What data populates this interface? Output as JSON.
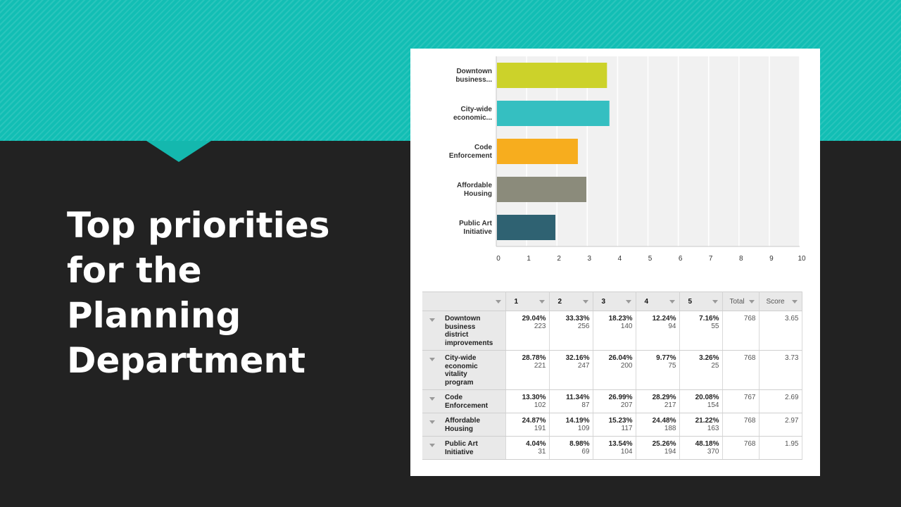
{
  "slide": {
    "title_lines": [
      "Top priorities",
      "for the",
      "Planning",
      "Department"
    ]
  },
  "colors": {
    "band": "#12beb4",
    "background": "#222222",
    "plot_background": "#f1f1f1",
    "bars": [
      "#ccd22a",
      "#35bfc1",
      "#f7ad1e",
      "#8b8b7b",
      "#2f6272"
    ]
  },
  "chart_data": {
    "type": "bar",
    "orientation": "horizontal",
    "categories": [
      "Downtown business...",
      "City-wide economic...",
      "Code Enforcement",
      "Affordable Housing",
      "Public Art Initiative"
    ],
    "category_lines": [
      [
        "Downtown",
        "business..."
      ],
      [
        "City-wide",
        "economic..."
      ],
      [
        "Code",
        "Enforcement"
      ],
      [
        "Affordable",
        "Housing"
      ],
      [
        "Public Art",
        "Initiative"
      ]
    ],
    "values": [
      3.65,
      3.73,
      2.69,
      2.97,
      1.95
    ],
    "xlim": [
      0,
      10
    ],
    "xticks": [
      "0",
      "1",
      "2",
      "3",
      "4",
      "5",
      "6",
      "7",
      "8",
      "9",
      "10"
    ],
    "grid": true,
    "title": "",
    "xlabel": "",
    "ylabel": ""
  },
  "table": {
    "columns": [
      "1",
      "2",
      "3",
      "4",
      "5",
      "Total",
      "Score"
    ],
    "rows": [
      {
        "label_lines": [
          "Downtown",
          "business",
          "district",
          "improvements"
        ],
        "pcts": [
          "29.04%",
          "33.33%",
          "18.23%",
          "12.24%",
          "7.16%"
        ],
        "counts": [
          "223",
          "256",
          "140",
          "94",
          "55"
        ],
        "total": "768",
        "score": "3.65"
      },
      {
        "label_lines": [
          "City-wide",
          "economic",
          "vitality",
          "program"
        ],
        "pcts": [
          "28.78%",
          "32.16%",
          "26.04%",
          "9.77%",
          "3.26%"
        ],
        "counts": [
          "221",
          "247",
          "200",
          "75",
          "25"
        ],
        "total": "768",
        "score": "3.73"
      },
      {
        "label_lines": [
          "Code",
          "Enforcement"
        ],
        "pcts": [
          "13.30%",
          "11.34%",
          "26.99%",
          "28.29%",
          "20.08%"
        ],
        "counts": [
          "102",
          "87",
          "207",
          "217",
          "154"
        ],
        "total": "767",
        "score": "2.69"
      },
      {
        "label_lines": [
          "Affordable",
          "Housing"
        ],
        "pcts": [
          "24.87%",
          "14.19%",
          "15.23%",
          "24.48%",
          "21.22%"
        ],
        "counts": [
          "191",
          "109",
          "117",
          "188",
          "163"
        ],
        "total": "768",
        "score": "2.97"
      },
      {
        "label_lines": [
          "Public Art",
          "Initiative"
        ],
        "pcts": [
          "4.04%",
          "8.98%",
          "13.54%",
          "25.26%",
          "48.18%"
        ],
        "counts": [
          "31",
          "69",
          "104",
          "194",
          "370"
        ],
        "total": "768",
        "score": "1.95"
      }
    ]
  }
}
